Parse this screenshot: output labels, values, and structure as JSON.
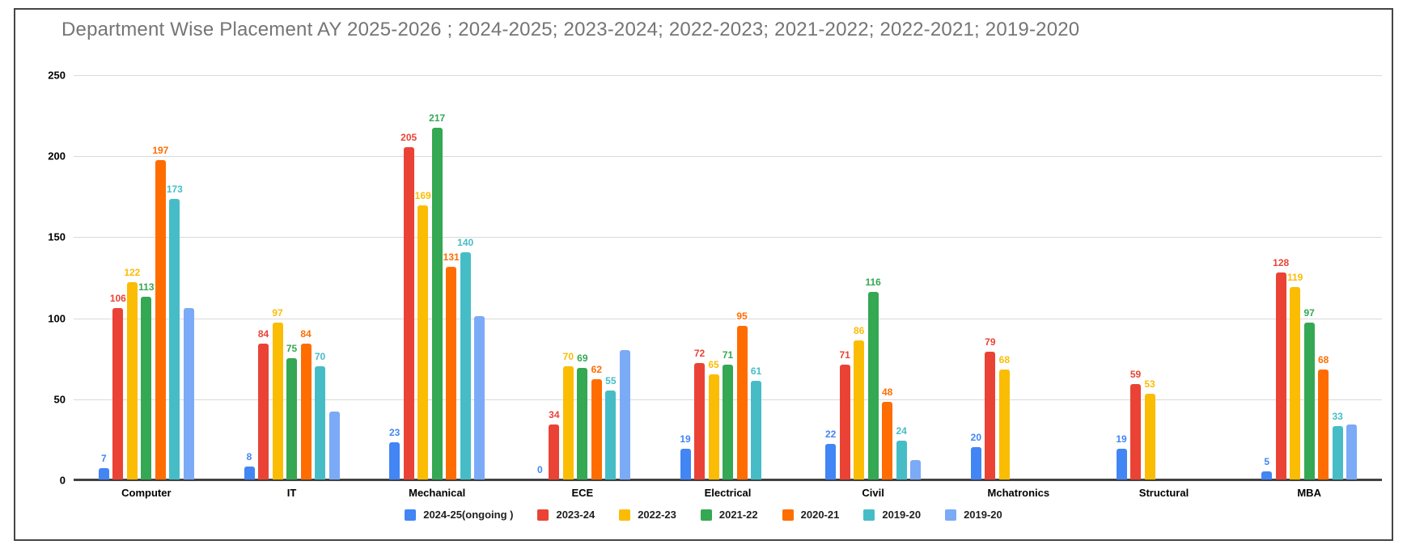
{
  "chart_data": {
    "type": "bar",
    "title": "Department Wise Placement AY 2025-2026 ; 2024-2025; 2023-2024; 2022-2023; 2021-2022; 2022-2021; 2019-2020",
    "categories": [
      "Computer",
      "IT",
      "Mechanical",
      "ECE",
      "Electrical",
      "Civil",
      "Mchatronics",
      "Structural",
      "MBA"
    ],
    "series": [
      {
        "name": "2024-25(ongoing )",
        "color": "#4285F4",
        "labeled": true,
        "values": [
          7,
          8,
          23,
          0,
          19,
          22,
          20,
          19,
          5
        ]
      },
      {
        "name": "2023-24",
        "color": "#EA4335",
        "labeled": true,
        "values": [
          106,
          84,
          205,
          34,
          72,
          71,
          79,
          59,
          128
        ]
      },
      {
        "name": "2022-23",
        "color": "#FBBC04",
        "labeled": true,
        "values": [
          122,
          97,
          169,
          70,
          65,
          86,
          68,
          53,
          119
        ]
      },
      {
        "name": "2021-22",
        "color": "#34A853",
        "labeled": true,
        "values": [
          113,
          75,
          217,
          69,
          71,
          116,
          null,
          null,
          97
        ]
      },
      {
        "name": "2020-21",
        "color": "#FF6D01",
        "labeled": true,
        "values": [
          197,
          84,
          131,
          62,
          95,
          48,
          null,
          null,
          68
        ]
      },
      {
        "name": "2019-20",
        "color": "#46BDC6",
        "labeled": true,
        "values": [
          173,
          70,
          140,
          55,
          61,
          24,
          null,
          null,
          33
        ]
      },
      {
        "name": "2019-20",
        "color": "#7BAAF7",
        "labeled": false,
        "values": [
          106,
          42,
          101,
          80,
          null,
          12,
          null,
          null,
          34
        ]
      }
    ],
    "ylim": [
      0,
      250
    ],
    "yticks": [
      0,
      50,
      100,
      150,
      200,
      250
    ],
    "grid": true,
    "legend_position": "bottom",
    "axis_color": "#424242",
    "gridline_color": "#d9d9d9",
    "title_color": "#757575"
  }
}
